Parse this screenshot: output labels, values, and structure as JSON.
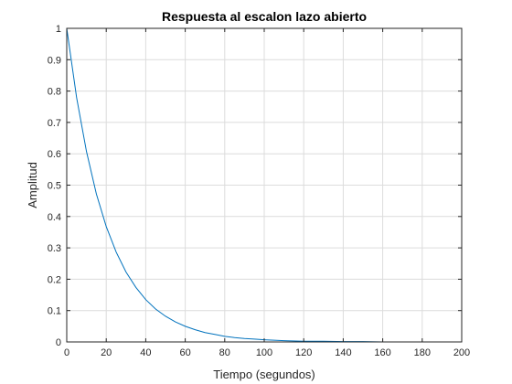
{
  "chart_data": {
    "type": "line",
    "title": "Respuesta al escalon lazo abierto",
    "xlabel": "Tiempo (segundos)",
    "ylabel": "Amplitud",
    "xlim": [
      0,
      200
    ],
    "ylim": [
      0,
      1
    ],
    "xticks": [
      0,
      20,
      40,
      60,
      80,
      100,
      120,
      140,
      160,
      180,
      200
    ],
    "yticks": [
      0,
      0.1,
      0.2,
      0.3,
      0.4,
      0.5,
      0.6,
      0.7,
      0.8,
      0.9,
      1
    ],
    "xtick_labels": [
      "0",
      "20",
      "40",
      "60",
      "80",
      "100",
      "120",
      "140",
      "160",
      "180",
      "200"
    ],
    "ytick_labels": [
      "0",
      "0.1",
      "0.2",
      "0.3",
      "0.4",
      "0.5",
      "0.6",
      "0.7",
      "0.8",
      "0.9",
      "1"
    ],
    "grid": true,
    "line_color": "#0072bd",
    "series": [
      {
        "x": [
          0,
          5,
          10,
          15,
          20,
          25,
          30,
          35,
          40,
          45,
          50,
          55,
          60,
          65,
          70,
          75,
          80,
          85,
          90,
          95,
          100,
          110,
          120,
          130,
          140,
          150,
          160,
          170,
          180,
          190,
          196
        ],
        "y": [
          1,
          0.779,
          0.607,
          0.472,
          0.368,
          0.287,
          0.223,
          0.174,
          0.135,
          0.105,
          0.082,
          0.064,
          0.05,
          0.039,
          0.03,
          0.024,
          0.018,
          0.014,
          0.011,
          0.009,
          0.007,
          0.004,
          0.002,
          0.002,
          0.001,
          0.001,
          0.0,
          0.0,
          0.0,
          0.0,
          0.0
        ]
      }
    ]
  }
}
